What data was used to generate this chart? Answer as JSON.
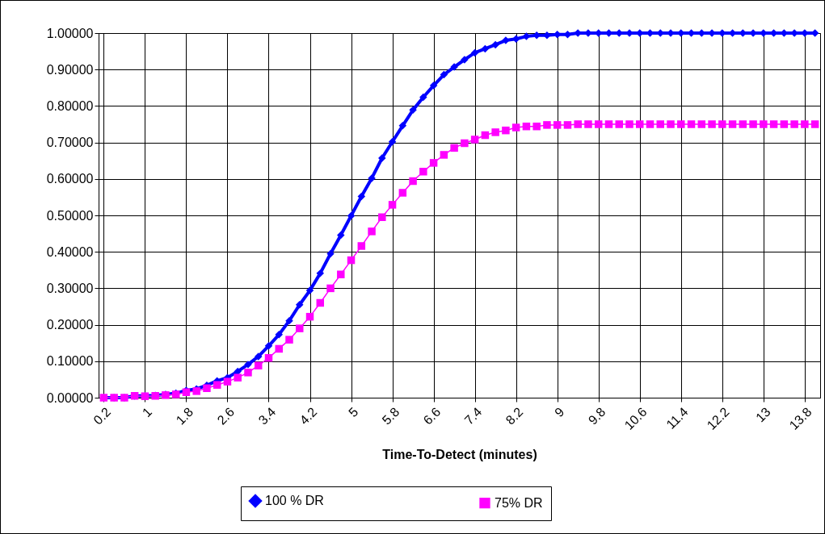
{
  "chart_data": {
    "type": "line",
    "xlabel": "Time-To-Detect (minutes)",
    "categories": [
      "0.2",
      null,
      null,
      null,
      "1",
      null,
      null,
      null,
      "1.8",
      null,
      null,
      null,
      "2.6",
      null,
      null,
      null,
      "3.4",
      null,
      null,
      null,
      "4.2",
      null,
      null,
      null,
      "5",
      null,
      null,
      null,
      "5.8",
      null,
      null,
      null,
      "6.6",
      null,
      null,
      null,
      "7.4",
      null,
      null,
      null,
      "8.2",
      null,
      null,
      null,
      "9",
      null,
      null,
      null,
      "9.8",
      null,
      null,
      null,
      "10.6",
      null,
      null,
      null,
      "11.4",
      null,
      null,
      null,
      "12.2",
      null,
      null,
      null,
      "13",
      null,
      null,
      null,
      "13.8",
      null
    ],
    "series": [
      {
        "name": "100 % DR",
        "color": "#0000ff",
        "marker": "diamond",
        "values": [
          0,
          0,
          0,
          0.005,
          0.005,
          0.006,
          0.009,
          0.012,
          0.02,
          0.024,
          0.034,
          0.046,
          0.055,
          0.072,
          0.091,
          0.113,
          0.142,
          0.173,
          0.211,
          0.255,
          0.294,
          0.341,
          0.395,
          0.446,
          0.499,
          0.552,
          0.602,
          0.657,
          0.702,
          0.746,
          0.789,
          0.824,
          0.856,
          0.886,
          0.907,
          0.927,
          0.946,
          0.957,
          0.968,
          0.98,
          0.984,
          0.991,
          0.994,
          0.994,
          0.996,
          0.996,
          1,
          1,
          1,
          1,
          1,
          1,
          1,
          1,
          1,
          1,
          1,
          1,
          1,
          1,
          1,
          1,
          1,
          1,
          1,
          1,
          1,
          1,
          1,
          1
        ]
      },
      {
        "name": "75% DR",
        "color": "#ff00ff",
        "marker": "square",
        "values": [
          0,
          0,
          0,
          0.005,
          0.004,
          0.005,
          0.007,
          0.009,
          0.015,
          0.018,
          0.026,
          0.035,
          0.044,
          0.055,
          0.069,
          0.088,
          0.109,
          0.134,
          0.159,
          0.19,
          0.222,
          0.26,
          0.3,
          0.338,
          0.377,
          0.416,
          0.456,
          0.495,
          0.529,
          0.562,
          0.594,
          0.62,
          0.644,
          0.666,
          0.685,
          0.698,
          0.708,
          0.72,
          0.728,
          0.733,
          0.741,
          0.744,
          0.744,
          0.748,
          0.748,
          0.748,
          0.75,
          0.75,
          0.75,
          0.75,
          0.75,
          0.75,
          0.75,
          0.75,
          0.75,
          0.75,
          0.75,
          0.75,
          0.75,
          0.75,
          0.75,
          0.75,
          0.75,
          0.75,
          0.75,
          0.75,
          0.75,
          0.75,
          0.75,
          0.75
        ]
      }
    ],
    "ylim": [
      0,
      1
    ],
    "yticks": [
      {
        "value": 0,
        "label": "0.00000"
      },
      {
        "value": 0.1,
        "label": "0.10000"
      },
      {
        "value": 0.2,
        "label": "0.20000"
      },
      {
        "value": 0.3,
        "label": "0.30000"
      },
      {
        "value": 0.4,
        "label": "0.40000"
      },
      {
        "value": 0.5,
        "label": "0.50000"
      },
      {
        "value": 0.6,
        "label": "0.60000"
      },
      {
        "value": 0.7,
        "label": "0.70000"
      },
      {
        "value": 0.8,
        "label": "0.80000"
      },
      {
        "value": 0.9,
        "label": "0.90000"
      },
      {
        "value": 1,
        "label": "1.00000"
      }
    ],
    "grid": true,
    "legend": "bottom",
    "line_style": "solid"
  }
}
